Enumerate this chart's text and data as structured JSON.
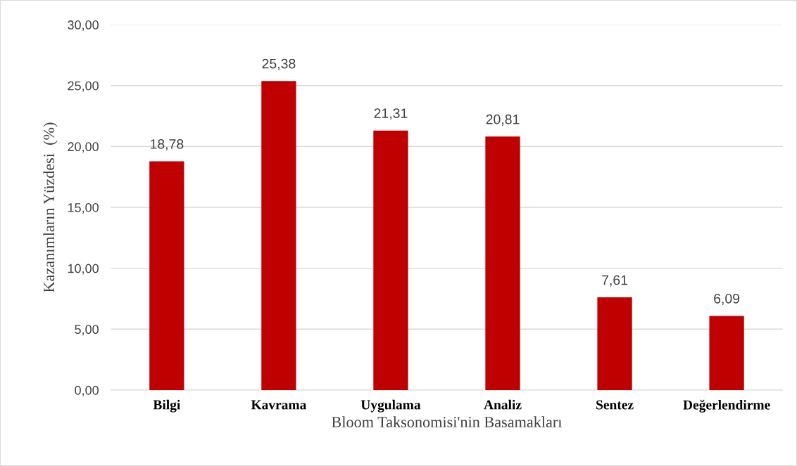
{
  "chart_data": {
    "type": "bar",
    "xlabel": "Bloom Taksonomisi'nin Basamakları",
    "ylabel": "Kazanımların Yüzdesi  (%)",
    "categories": [
      "Bilgi",
      "Kavrama",
      "Uygulama",
      "Analiz",
      "Sentez",
      "Değerlendirme"
    ],
    "values": [
      18.78,
      25.38,
      21.31,
      20.81,
      7.61,
      6.09
    ],
    "value_labels": [
      "18,78",
      "25,38",
      "21,31",
      "20,81",
      "7,61",
      "6,09"
    ],
    "color": "#c00000",
    "ylim": [
      0,
      30
    ],
    "yticks": [
      {
        "value": 0,
        "label": "0,00"
      },
      {
        "value": 5,
        "label": "5,00"
      },
      {
        "value": 10,
        "label": "10,00"
      },
      {
        "value": 15,
        "label": "15,00"
      },
      {
        "value": 20,
        "label": "20,00"
      },
      {
        "value": 25,
        "label": "25,00"
      },
      {
        "value": 30,
        "label": "30,00"
      }
    ],
    "grid": "y",
    "legend": false
  }
}
